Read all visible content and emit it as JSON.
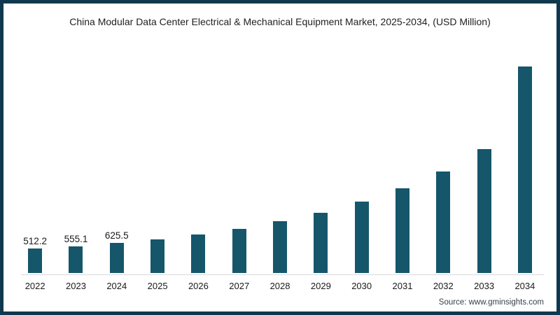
{
  "chart_data": {
    "type": "bar",
    "title": "China Modular Data Center Electrical & Mechanical Equipment Market, 2025-2034, (USD Million)",
    "value_unit": "USD Million",
    "categories": [
      "2022",
      "2023",
      "2024",
      "2025",
      "2026",
      "2027",
      "2028",
      "2029",
      "2030",
      "2031",
      "2032",
      "2033",
      "2034"
    ],
    "values": [
      512.2,
      555.1,
      625.5,
      710,
      810,
      930,
      1080,
      1260,
      1490,
      1770,
      2120,
      2600,
      4320
    ],
    "data_labels": [
      "512.2",
      "555.1",
      "625.5",
      "",
      "",
      "",
      "",
      "",
      "",
      "",
      "",
      "",
      ""
    ],
    "xlabel": "",
    "ylabel": "",
    "ylim": [
      0,
      4500
    ],
    "grid": false,
    "legend_position": "none",
    "bar_color": "#15566A"
  },
  "footer": {
    "source": "Source: www.gminsights.com"
  },
  "colors": {
    "frame_border": "#10384F",
    "bar": "#15566A",
    "axis_line": "#D9D9D9",
    "title_text": "#212121",
    "label_text": "#1A1A1A",
    "source_text": "#333F48"
  }
}
